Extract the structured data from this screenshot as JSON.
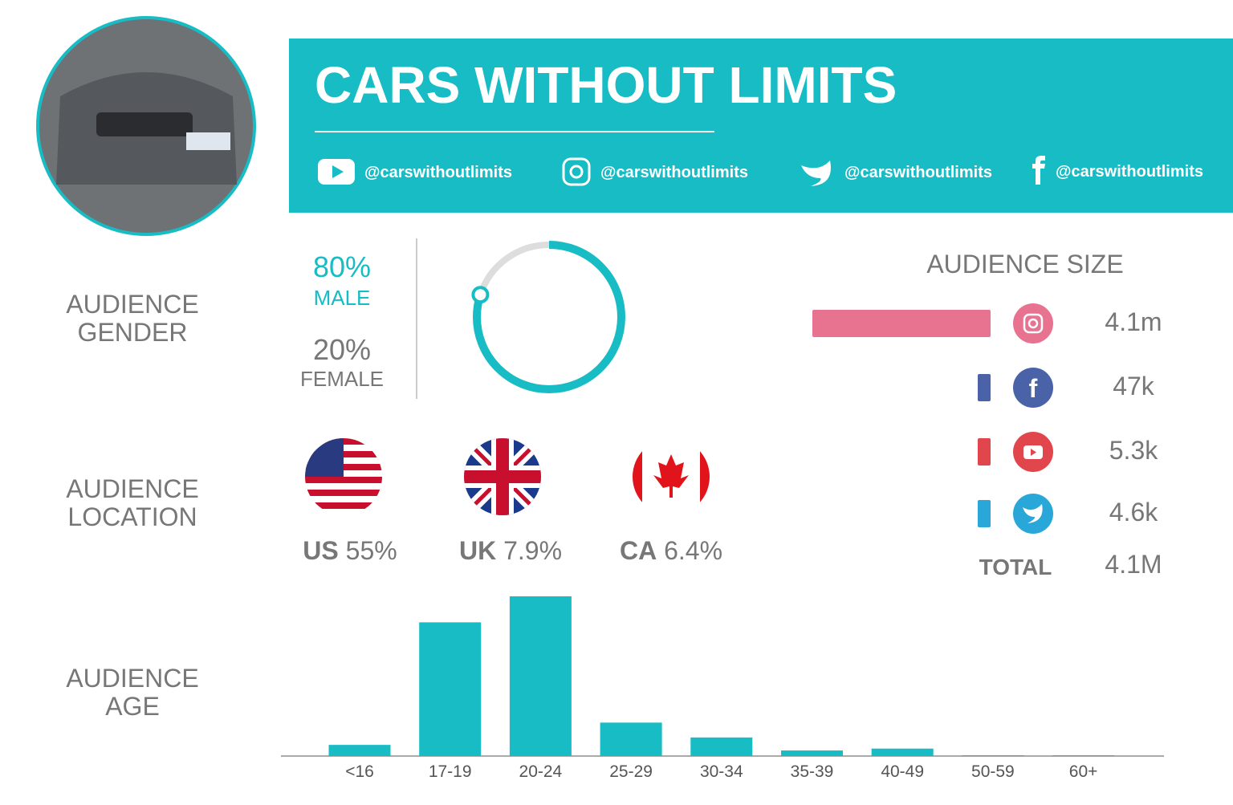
{
  "header": {
    "title": "CARS WITHOUT LIMITS",
    "handles": [
      "@carswithoutlimits",
      "@carswithoutlimits",
      "@carswithoutlimits",
      "@carswithoutlimits"
    ]
  },
  "gender": {
    "title": "AUDIENCE GENDER",
    "values": [
      80,
      20
    ],
    "value_labels": [
      "80%",
      "20%"
    ],
    "names": [
      "MALE",
      "FEMALE"
    ]
  },
  "location": {
    "title": "AUDIENCE LOCATION",
    "codes": [
      "US",
      "UK",
      "CA"
    ],
    "shares": [
      "55%",
      "7.9%",
      "6.4%"
    ]
  },
  "audience_size": {
    "title": "AUDIENCE SIZE",
    "values": [
      4100000,
      47000,
      5300,
      4600
    ],
    "value_labels": [
      "4.1m",
      "47k",
      "5.3k",
      "4.6k"
    ],
    "total_label": "TOTAL",
    "total": "4.1M"
  },
  "chart_data": {
    "type": "bar",
    "title": "AUDIENCE AGE",
    "categories": [
      "<16",
      "17-19",
      "20-24",
      "25-29",
      "30-34",
      "35-39",
      "40-49",
      "50-59",
      "60+"
    ],
    "values": [
      3,
      36,
      43,
      9,
      5,
      1.5,
      2,
      0.2,
      0.2
    ],
    "color": "#17bcc4"
  }
}
